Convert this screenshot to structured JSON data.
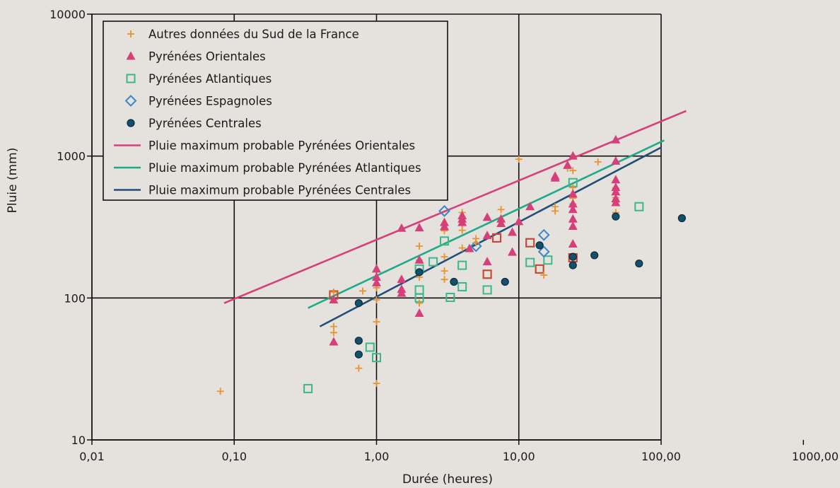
{
  "chart_data": {
    "type": "scatter",
    "xscale": "log",
    "yscale": "log",
    "xlabel": "Durée (heures)",
    "ylabel": "Pluie (mm)",
    "xlim": [
      0.01,
      1000
    ],
    "ylim": [
      10,
      10000
    ],
    "grid": true,
    "legend_placement": "top-left",
    "x_ticks": [
      {
        "value": 0.01,
        "label": "0,01"
      },
      {
        "value": 0.1,
        "label": "0,10"
      },
      {
        "value": 1,
        "label": "1,00"
      },
      {
        "value": 10,
        "label": "10,00"
      },
      {
        "value": 100,
        "label": "100,00"
      },
      {
        "value": 1000,
        "label": "1000,00"
      }
    ],
    "y_ticks": [
      {
        "value": 10,
        "label": "10"
      },
      {
        "value": 100,
        "label": "100"
      },
      {
        "value": 1000,
        "label": "1000"
      },
      {
        "value": 10000,
        "label": "10000"
      }
    ],
    "series": [
      {
        "name": "Autres données du Sud de la France",
        "marker": "plus",
        "color": "#e8932f",
        "points": [
          [
            0.08,
            22
          ],
          [
            0.5,
            110
          ],
          [
            0.5,
            63
          ],
          [
            0.5,
            57
          ],
          [
            0.75,
            32
          ],
          [
            0.8,
            112
          ],
          [
            1,
            97
          ],
          [
            1,
            68
          ],
          [
            1,
            25
          ],
          [
            1,
            118
          ],
          [
            2,
            232
          ],
          [
            2,
            185
          ],
          [
            2,
            140
          ],
          [
            2,
            92
          ],
          [
            3,
            298
          ],
          [
            3,
            195
          ],
          [
            3,
            155
          ],
          [
            3,
            135
          ],
          [
            4,
            400
          ],
          [
            4,
            325
          ],
          [
            4,
            300
          ],
          [
            4,
            225
          ],
          [
            5,
            262
          ],
          [
            5,
            245
          ],
          [
            7.5,
            420
          ],
          [
            7.5,
            352
          ],
          [
            10,
            950
          ],
          [
            15,
            145
          ],
          [
            18,
            440
          ],
          [
            18,
            410
          ],
          [
            22,
            820
          ],
          [
            24,
            790
          ],
          [
            24,
            460
          ],
          [
            24,
            505
          ],
          [
            24,
            600
          ],
          [
            36,
            910
          ],
          [
            48,
            400
          ],
          [
            48,
            595
          ],
          [
            48,
            510
          ]
        ]
      },
      {
        "name": "Pyrénées Orientales",
        "marker": "triangle",
        "color": "#d6407a",
        "points": [
          [
            0.5,
            97
          ],
          [
            0.5,
            49
          ],
          [
            1,
            160
          ],
          [
            1,
            140
          ],
          [
            1,
            128
          ],
          [
            1.5,
            310
          ],
          [
            1.5,
            135
          ],
          [
            1.5,
            115
          ],
          [
            1.5,
            108
          ],
          [
            2,
            312
          ],
          [
            2,
            185
          ],
          [
            2,
            78
          ],
          [
            3,
            340
          ],
          [
            3,
            318
          ],
          [
            4,
            380
          ],
          [
            4,
            360
          ],
          [
            4,
            340
          ],
          [
            4.5,
            223
          ],
          [
            6,
            370
          ],
          [
            6,
            275
          ],
          [
            6,
            180
          ],
          [
            7.5,
            360
          ],
          [
            7.5,
            335
          ],
          [
            9,
            290
          ],
          [
            9,
            210
          ],
          [
            10,
            345
          ],
          [
            12,
            440
          ],
          [
            18,
            720
          ],
          [
            18,
            700
          ],
          [
            22,
            860
          ],
          [
            24,
            1000
          ],
          [
            24,
            540
          ],
          [
            24,
            460
          ],
          [
            24,
            420
          ],
          [
            24,
            360
          ],
          [
            24,
            320
          ],
          [
            24,
            240
          ],
          [
            48,
            1300
          ],
          [
            48,
            920
          ],
          [
            48,
            680
          ],
          [
            48,
            600
          ],
          [
            48,
            560
          ],
          [
            48,
            500
          ],
          [
            48,
            470
          ]
        ]
      },
      {
        "name": "Pyrénées Atlantiques",
        "marker": "square",
        "color": "#3ab88a",
        "points": [
          [
            0.33,
            23
          ],
          [
            0.5,
            105
          ],
          [
            0.9,
            45
          ],
          [
            1,
            38
          ],
          [
            2,
            160
          ],
          [
            2,
            114
          ],
          [
            2,
            100
          ],
          [
            2.5,
            180
          ],
          [
            3,
            252
          ],
          [
            3.3,
            101
          ],
          [
            4,
            170
          ],
          [
            4,
            120
          ],
          [
            6,
            147
          ],
          [
            6,
            114
          ],
          [
            7,
            265
          ],
          [
            12,
            245
          ],
          [
            12,
            178
          ],
          [
            14,
            160
          ],
          [
            16,
            185
          ],
          [
            24,
            650
          ],
          [
            24,
            192
          ],
          [
            70,
            440
          ]
        ]
      },
      {
        "name": "Pyrénées Espagnoles",
        "marker": "diamond",
        "color": "#3a86c8",
        "points": [
          [
            3,
            410
          ],
          [
            5,
            232
          ],
          [
            15,
            278
          ],
          [
            15,
            212
          ]
        ]
      },
      {
        "name": "Pyrénées Centrales",
        "marker": "circle",
        "color": "#13506b",
        "points": [
          [
            0.75,
            92
          ],
          [
            0.75,
            50
          ],
          [
            0.75,
            40
          ],
          [
            2,
            152
          ],
          [
            3.5,
            130
          ],
          [
            8,
            130
          ],
          [
            14,
            235
          ],
          [
            24,
            195
          ],
          [
            24,
            170
          ],
          [
            34,
            200
          ],
          [
            48,
            375
          ],
          [
            70,
            175
          ],
          [
            140,
            365
          ]
        ]
      }
    ],
    "lines": [
      {
        "name": "Pluie maximum probable Pyrénées Orientales",
        "color": "#d6407a",
        "points": [
          [
            0.085,
            92
          ],
          [
            150,
            2080
          ]
        ]
      },
      {
        "name": "Pluie maximum probable Pyrénées Atlantiques",
        "color": "#1fa98a",
        "points": [
          [
            0.33,
            85
          ],
          [
            105,
            1290
          ]
        ]
      },
      {
        "name": "Pluie maximum probable Pyrénées Centrales",
        "color": "#1f4f78",
        "points": [
          [
            0.4,
            63
          ],
          [
            100,
            1150
          ]
        ]
      }
    ],
    "highlighted_points": [
      {
        "marker": "square",
        "color": "#d6402e",
        "points": [
          [
            0.5,
            105
          ],
          [
            6,
            147
          ],
          [
            7,
            265
          ],
          [
            12,
            245
          ],
          [
            14,
            160
          ],
          [
            24,
            192
          ]
        ]
      }
    ]
  }
}
